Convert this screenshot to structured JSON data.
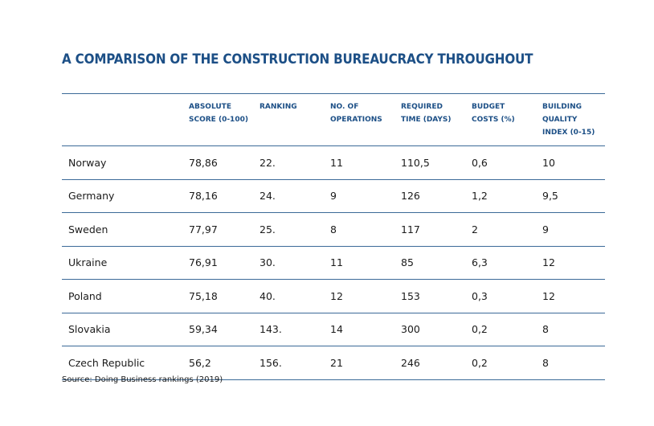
{
  "title": "A COMPARISON OF THE CONSTRUCTION BUREAUCRACY THROUGHOUT",
  "columns": [
    "",
    "ABSOLUTE SCORE (0-100)",
    "RANKING",
    "NO. OF OPERATIONS",
    "REQUIRED TIME (DAYS)",
    "BUDGET COSTS (%)",
    "BUILDING QUALITY INDEX (0-15)"
  ],
  "rows": [
    [
      "Norway",
      "78,86",
      "22.",
      "11",
      "110,5",
      "0,6",
      "10"
    ],
    [
      "Germany",
      "78,16",
      "24.",
      "9",
      "126",
      "1,2",
      "9,5"
    ],
    [
      "Sweden",
      "77,97",
      "25.",
      "8",
      "117",
      "2",
      "9"
    ],
    [
      "Ukraine",
      "76,91",
      "30.",
      "11",
      "85",
      "6,3",
      "12"
    ],
    [
      "Poland",
      "75,18",
      "40.",
      "12",
      "153",
      "0,3",
      "12"
    ],
    [
      "Slovakia",
      "59,34",
      "143.",
      "14",
      "300",
      "0,2",
      "8"
    ],
    [
      "Czech Republic",
      "56,2",
      "156.",
      "21",
      "246",
      "0,2",
      "8"
    ]
  ],
  "source": "Source: Doing Business rankings (2019)",
  "colors": {
    "accent": "#1c4f86",
    "rule": "#3b6a98",
    "text": "#1b1b1b"
  }
}
